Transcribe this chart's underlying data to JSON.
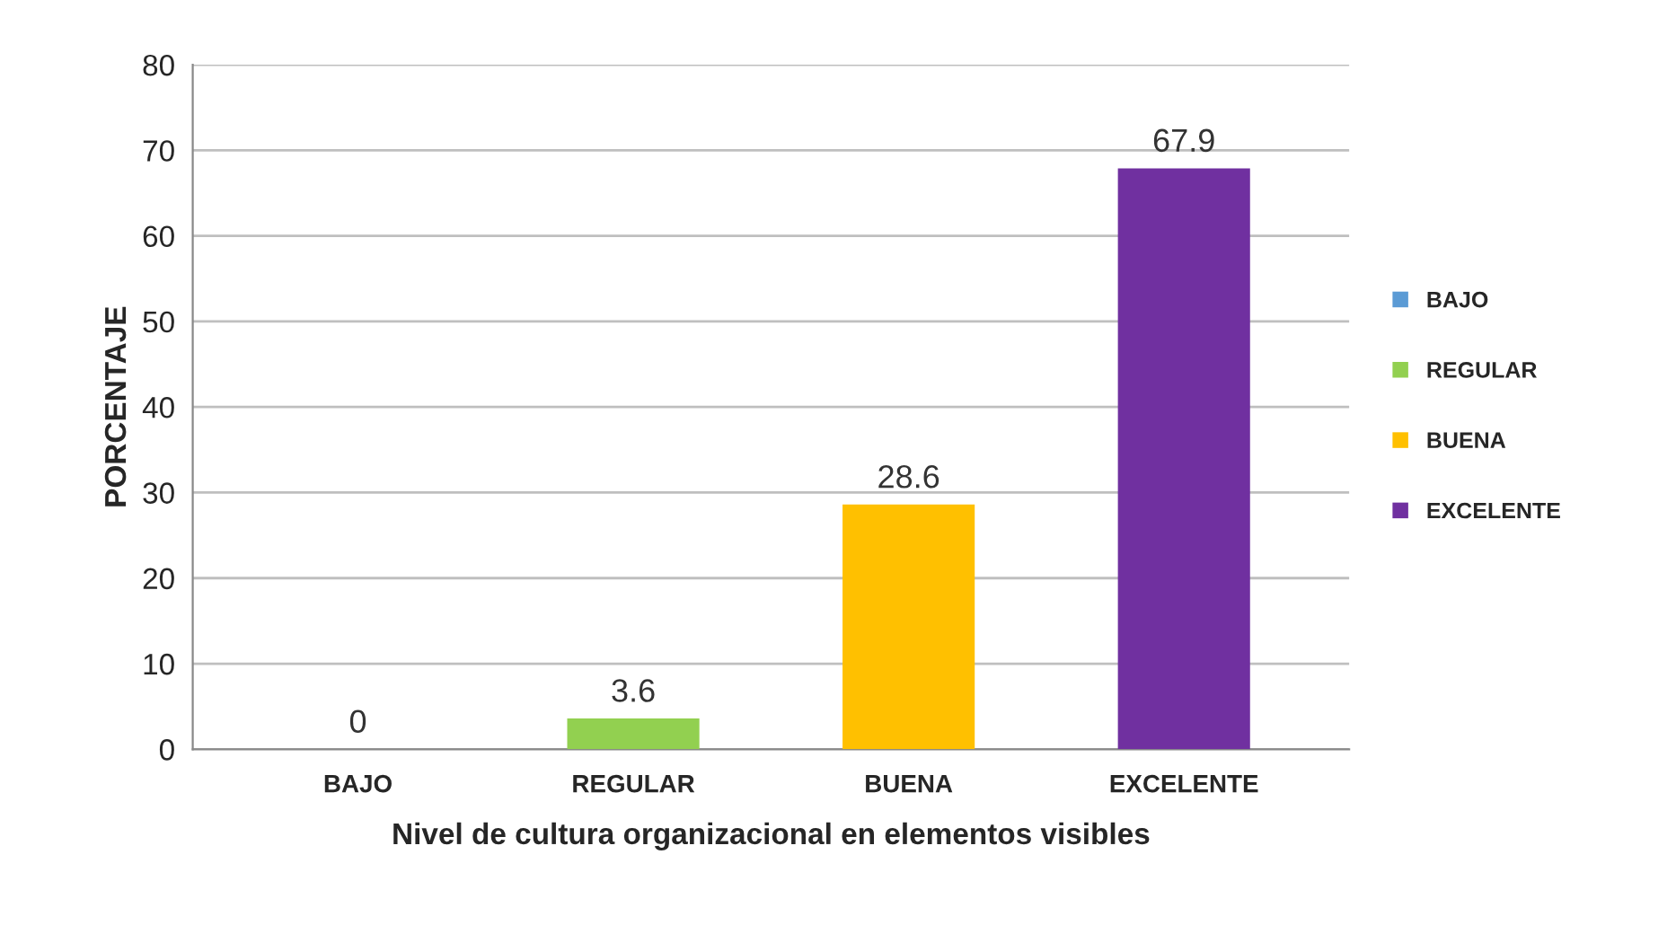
{
  "chart_data": {
    "type": "bar",
    "xlabel": "Nivel de cultura organizacional en elementos visibles",
    "ylabel": "PORCENTAJE",
    "categories": [
      "BAJO",
      "REGULAR",
      "BUENA",
      "EXCELENTE"
    ],
    "series": [
      {
        "name": "BAJO",
        "color": "#5b9bd5",
        "values": [
          0,
          null,
          null,
          null
        ]
      },
      {
        "name": "REGULAR",
        "color": "#92d050",
        "values": [
          null,
          3.6,
          null,
          null
        ]
      },
      {
        "name": "BUENA",
        "color": "#ffc000",
        "values": [
          null,
          null,
          28.6,
          null
        ]
      },
      {
        "name": "EXCELENTE",
        "color": "#7030a0",
        "values": [
          null,
          null,
          null,
          67.9
        ]
      }
    ],
    "ylim": [
      0,
      80
    ],
    "yticks": [
      0,
      10,
      20,
      30,
      40,
      50,
      60,
      70,
      80
    ],
    "grid": "y",
    "legend": "right",
    "data_labels": true
  }
}
